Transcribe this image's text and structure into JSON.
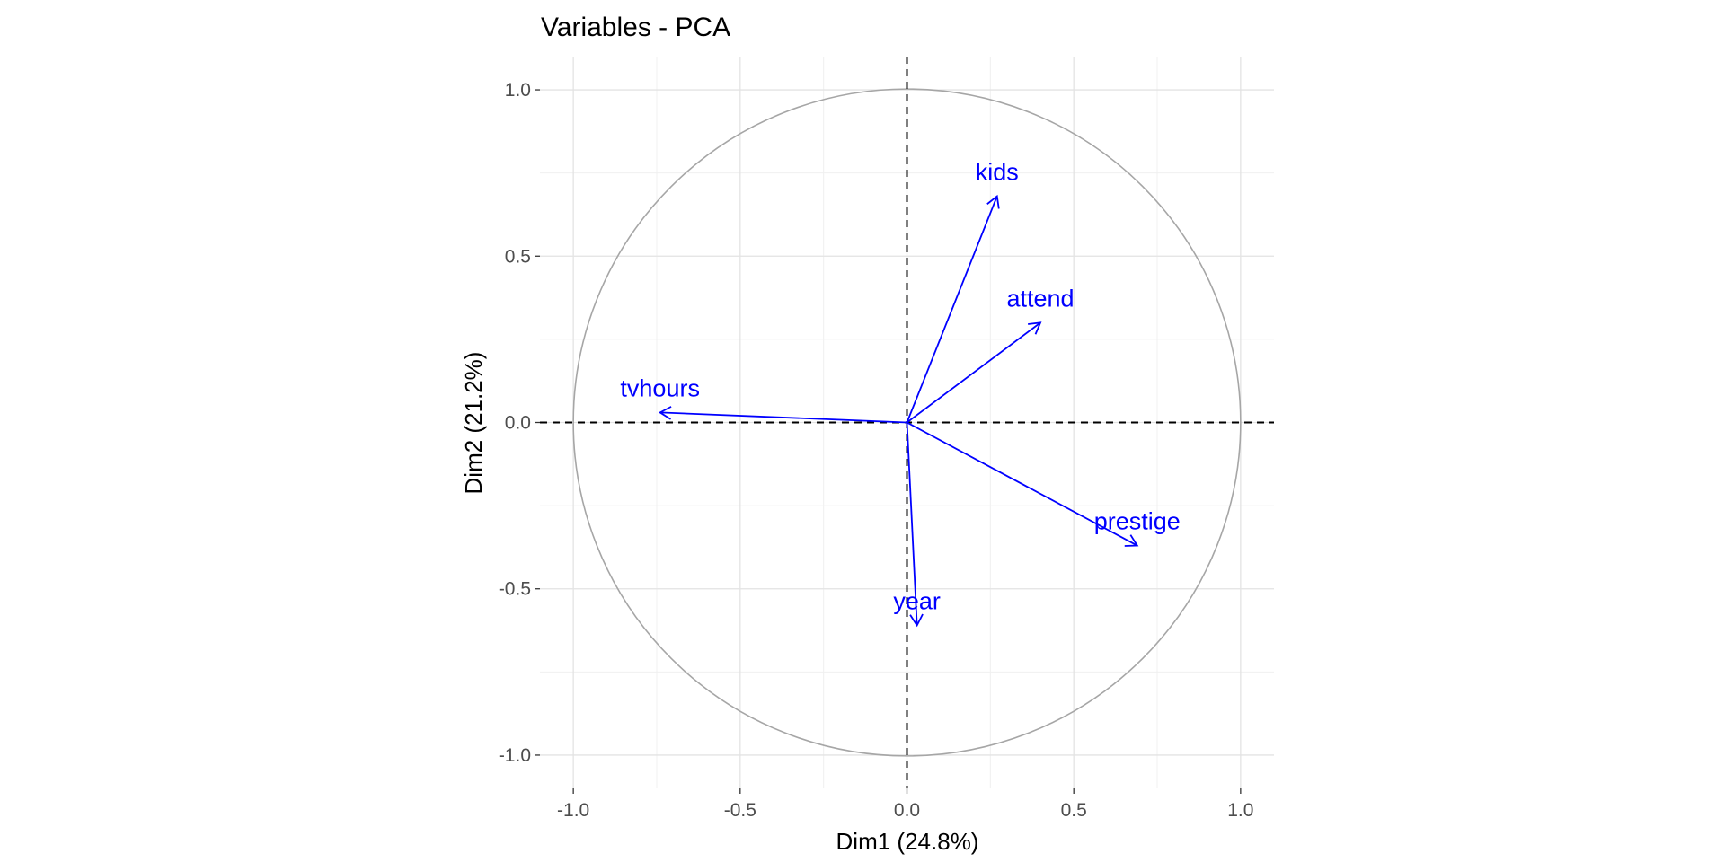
{
  "chart_data": {
    "type": "scatter",
    "subtype": "pca-variable-correlation-circle",
    "title": "Variables - PCA",
    "xlabel": "Dim1 (24.8%)",
    "ylabel": "Dim2 (21.2%)",
    "xlim": [
      -1.1,
      1.1
    ],
    "ylim": [
      -1.1,
      1.1
    ],
    "x_ticks": [
      -1.0,
      -0.5,
      0.0,
      0.5,
      1.0
    ],
    "y_ticks": [
      -1.0,
      -0.5,
      0.0,
      0.5,
      1.0
    ],
    "x_tick_labels": [
      "-1.0",
      "-0.5",
      "0.0",
      "0.5",
      "1.0"
    ],
    "y_tick_labels": [
      "-1.0",
      "-0.5",
      "0.0",
      "0.5",
      "1.0"
    ],
    "grid": true,
    "unit_circle": true,
    "reference_lines": {
      "x": 0,
      "y": 0,
      "style": "dashed"
    },
    "arrow_color": "#0000ff",
    "circle_color": "#a6a6a6",
    "series": [
      {
        "label": "kids",
        "x": 0.27,
        "y": 0.68
      },
      {
        "label": "attend",
        "x": 0.4,
        "y": 0.3
      },
      {
        "label": "tvhours",
        "x": -0.74,
        "y": 0.03
      },
      {
        "label": "prestige",
        "x": 0.69,
        "y": -0.37
      },
      {
        "label": "year",
        "x": 0.03,
        "y": -0.61
      }
    ]
  }
}
